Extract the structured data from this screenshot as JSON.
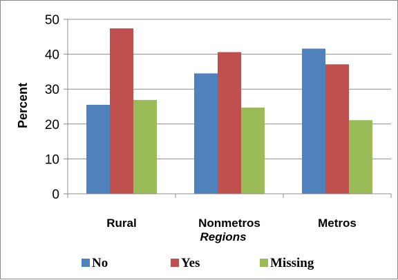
{
  "chart_data": {
    "type": "bar",
    "categories": [
      "Rural",
      "Nonmetros",
      "Metros"
    ],
    "series": [
      {
        "name": "No",
        "color": "#4f81bd",
        "values": [
          25.5,
          34.5,
          41.6
        ]
      },
      {
        "name": "Yes",
        "color": "#c0504d",
        "values": [
          47.4,
          40.6,
          37.1
        ]
      },
      {
        "name": "Missing",
        "color": "#9bbb59",
        "values": [
          26.9,
          24.7,
          21.1
        ]
      }
    ],
    "xlabel": "Regions",
    "ylabel": "Percent",
    "ylim": [
      0,
      50
    ],
    "yticks": [
      "0",
      "10",
      "20",
      "30",
      "40",
      "50"
    ],
    "grid": true,
    "legend": "bottom"
  }
}
